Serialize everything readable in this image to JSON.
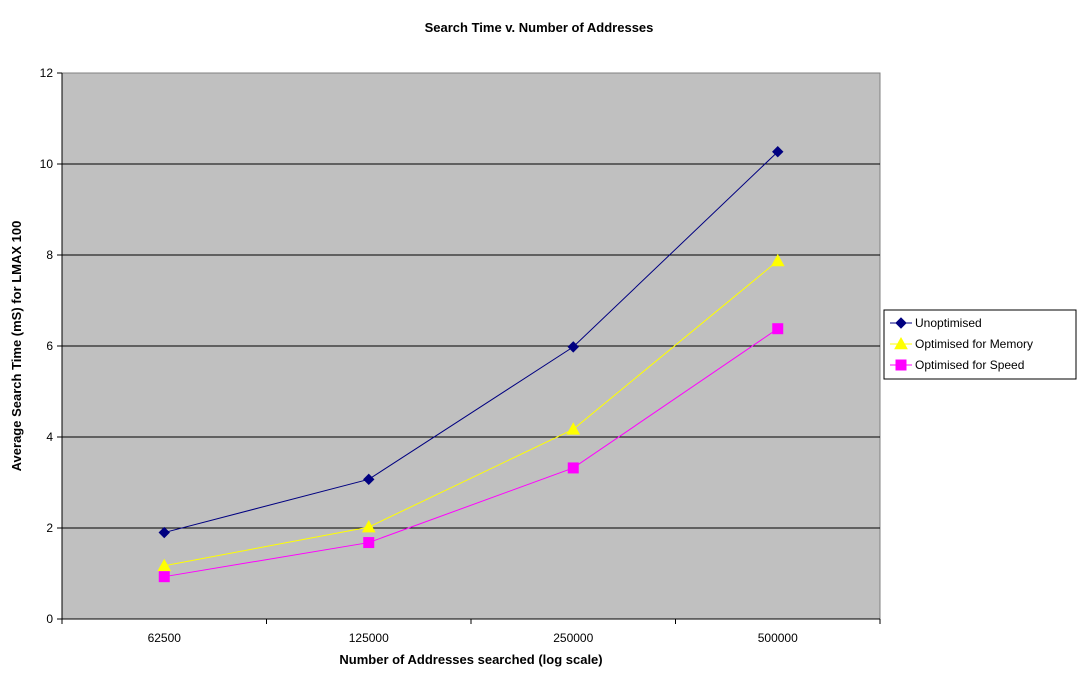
{
  "chart_data": {
    "type": "line",
    "title": "Search Time v. Number of Addresses",
    "xlabel": "Number of Addresses searched (log scale)",
    "ylabel": "Average Search Time  (mS) for LMAX 100",
    "categories": [
      "62500",
      "125000",
      "250000",
      "500000"
    ],
    "ylim": [
      0,
      12
    ],
    "yticks": [
      0,
      2,
      4,
      6,
      8,
      10,
      12
    ],
    "grid": true,
    "legend_position": "right",
    "plot_background": "#c0c0c0",
    "series": [
      {
        "name": "Unoptimised",
        "values": [
          1.9,
          3.07,
          5.98,
          10.27
        ],
        "color": "#000080",
        "marker": "diamond"
      },
      {
        "name": "Optimised for Memory",
        "values": [
          1.17,
          2.02,
          4.17,
          7.87
        ],
        "color": "#ffff00",
        "marker": "triangle"
      },
      {
        "name": "Optimised for Speed",
        "values": [
          0.93,
          1.68,
          3.32,
          6.38
        ],
        "color": "#ff00ff",
        "marker": "square"
      }
    ]
  }
}
